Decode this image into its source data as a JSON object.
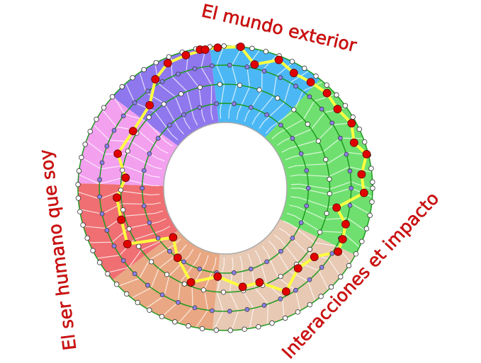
{
  "labels": {
    "top": "El mundo exterior",
    "right": "Interacciones et impacto",
    "left": "El ser humano que soy"
  },
  "colors": {
    "label_text": "#d01010",
    "ring_line": "#1e9a1e",
    "path": "#ffff40",
    "path_node": "#e00000",
    "inner_node": "#8a7ee8",
    "outer_node": "#ffffff"
  },
  "sectors": [
    {
      "name": "blue",
      "color": "#4bb8f5"
    },
    {
      "name": "green",
      "color": "#6fe06f"
    },
    {
      "name": "beige",
      "color": "#e8c9b4"
    },
    {
      "name": "orange",
      "color": "#e9a883"
    },
    {
      "name": "red",
      "color": "#ef6f72"
    },
    {
      "name": "pink",
      "color": "#f3a0ef"
    },
    {
      "name": "purple",
      "color": "#8f78ee"
    }
  ]
}
